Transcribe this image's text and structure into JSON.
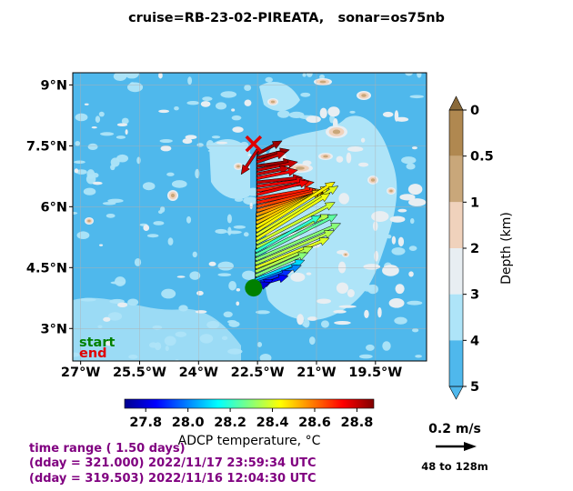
{
  "title": "cruise=RB-23-02-PIREATA,   sonar=os75nb",
  "chart_data": [
    {
      "type": "map-vector",
      "xlim": [
        -27.2,
        -18.2
      ],
      "ylim": [
        2.2,
        9.3
      ],
      "x_ticks": [
        -27,
        -25.5,
        -24,
        -22.5,
        -21,
        -19.5
      ],
      "x_tick_labels": [
        "27°W",
        "25.5°W",
        "24°W",
        "22.5°W",
        "21°W",
        "19.5°W"
      ],
      "y_ticks": [
        3,
        4.5,
        6,
        7.5,
        9
      ],
      "y_tick_labels": [
        "3°N",
        "4.5°N",
        "6°N",
        "7.5°N",
        "9°N"
      ],
      "grid": true,
      "legend": {
        "start": "start",
        "end": "end",
        "start_color": "#008000",
        "end_color": "#e00000"
      },
      "track": {
        "lon": [
          -22.5,
          -22.5,
          -22.52,
          -22.52,
          -22.52,
          -22.52,
          -22.52,
          -22.52,
          -22.52,
          -22.52,
          -22.52,
          -22.52,
          -22.52,
          -22.52,
          -22.52,
          -22.52,
          -22.53,
          -22.53,
          -22.53,
          -22.53,
          -22.53,
          -22.53,
          -22.53,
          -22.53,
          -22.53,
          -22.55,
          -22.55,
          -22.55,
          -22.55,
          -22.55,
          -22.55,
          -22.55,
          -22.55,
          -22.55,
          -22.55,
          -22.55,
          -22.6,
          -22.6
        ],
        "lat": [
          7.4,
          7.3,
          7.2,
          7.1,
          7.0,
          6.9,
          6.8,
          6.7,
          6.6,
          6.5,
          6.4,
          6.3,
          6.2,
          6.1,
          6.0,
          5.9,
          5.8,
          5.7,
          5.6,
          5.5,
          5.4,
          5.3,
          5.2,
          5.1,
          5.0,
          4.9,
          4.8,
          4.7,
          4.6,
          4.5,
          4.4,
          4.3,
          4.2,
          4.15,
          4.1,
          4.05,
          4.0,
          3.98
        ]
      },
      "start_point": {
        "lon": -22.6,
        "lat": 4.0
      },
      "end_point": {
        "lon": -22.6,
        "lat": 7.55
      },
      "vectors": {
        "u_m_per_s": [
          -0.1,
          0.15,
          0.2,
          0.18,
          0.22,
          0.25,
          0.2,
          0.25,
          0.28,
          0.3,
          0.35,
          0.32,
          0.35,
          0.38,
          0.4,
          0.42,
          0.42,
          0.42,
          0.4,
          0.45,
          0.48,
          0.5,
          0.45,
          0.48,
          0.45,
          0.4,
          0.5,
          0.52,
          0.48,
          0.45,
          0.35,
          0.32,
          0.3,
          0.28,
          0.22,
          0.2,
          0.12,
          0.1
        ],
        "v_m_per_s": [
          -0.15,
          0.08,
          0.05,
          0.06,
          0.03,
          0.05,
          0.04,
          0.05,
          0.03,
          0.04,
          0.05,
          0.08,
          0.06,
          0.08,
          0.1,
          0.12,
          0.15,
          0.18,
          0.2,
          0.25,
          0.3,
          0.3,
          0.28,
          0.25,
          0.2,
          0.22,
          0.25,
          0.22,
          0.2,
          0.18,
          0.15,
          0.14,
          0.12,
          0.1,
          0.08,
          0.06,
          0.05,
          0.04
        ],
        "temperature_c": [
          28.8,
          28.85,
          28.85,
          28.8,
          28.85,
          28.8,
          28.8,
          28.75,
          28.8,
          28.75,
          28.7,
          28.75,
          28.7,
          28.7,
          28.65,
          28.6,
          28.55,
          28.5,
          28.5,
          28.45,
          28.45,
          28.4,
          28.42,
          28.38,
          28.35,
          28.2,
          28.25,
          28.3,
          28.35,
          28.4,
          28.35,
          28.3,
          28.1,
          28.0,
          27.9,
          27.85,
          27.85,
          27.8
        ]
      },
      "colorbar_temperature": {
        "label": "ADCP temperature, °C",
        "ticks": [
          "27.8",
          "28.0",
          "28.2",
          "28.4",
          "28.6",
          "28.8"
        ],
        "range": [
          27.7,
          28.88
        ]
      },
      "colorbar_depth": {
        "label": "Depth (km)",
        "ticks": [
          "0",
          "0.5",
          "1",
          "2",
          "3",
          "4",
          "5"
        ],
        "colors": [
          "#b08850",
          "#c9a77a",
          "#f0d2bc",
          "#e8eef2",
          "#aee4f8",
          "#4fb8ec"
        ]
      },
      "reference_vector": {
        "label": "0.2 m/s",
        "value": 0.2,
        "depth_label": "48 to 128m"
      }
    }
  ],
  "time_info": [
    "time range ( 1.50 days)",
    "(dday = 321.000) 2022/11/17 23:59:34 UTC",
    "(dday = 319.503) 2022/11/16 12:04:30 UTC"
  ],
  "colors": {
    "deep": "#4fb8ec",
    "mid": "#aee4f8",
    "shallow": "#e8eef2",
    "light_brown": "#f0d2bc",
    "brown": "#c9a77a",
    "dark_brown": "#b08850",
    "info_text": "#800080"
  }
}
